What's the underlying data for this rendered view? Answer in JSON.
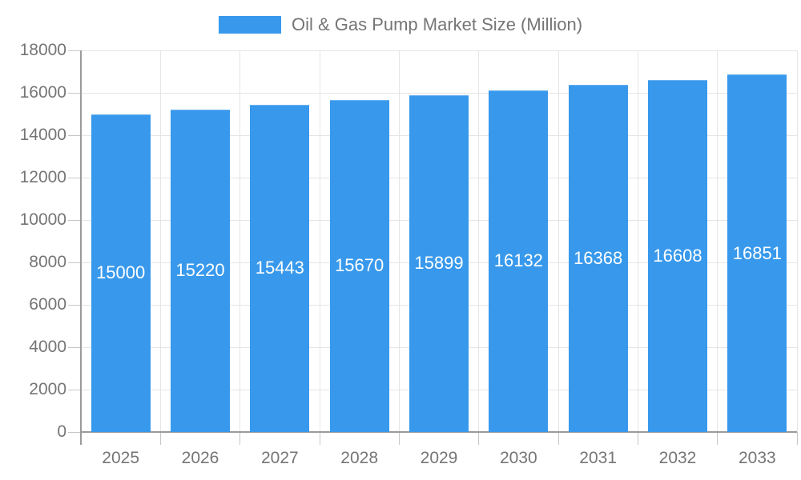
{
  "legend": {
    "label": "Oil & Gas Pump Market Size (Million)"
  },
  "colors": {
    "bar": "#3899EC",
    "axis_line": "#9b9b9b",
    "tick": "#c6c6c6",
    "grid": "#e5e5e5",
    "axis_label": "#757575",
    "value_label": "#ffffff",
    "background": "#ffffff"
  },
  "chart_data": {
    "type": "bar",
    "title": "Oil & Gas Pump Market Size (Million)",
    "categories": [
      "2025",
      "2026",
      "2027",
      "2028",
      "2029",
      "2030",
      "2031",
      "2032",
      "2033"
    ],
    "values": [
      15000,
      15220,
      15443,
      15670,
      15899,
      16132,
      16368,
      16608,
      16851
    ],
    "series_name": "Oil & Gas Pump Market Size (Million)",
    "xlabel": "",
    "ylabel": "",
    "ylim": [
      0,
      18000
    ],
    "ytick_step": 2000,
    "ytick_labels": [
      "0",
      "2000",
      "4000",
      "6000",
      "8000",
      "10000",
      "12000",
      "14000",
      "16000",
      "18000"
    ],
    "grid": true,
    "legend_position": "top-center",
    "value_label_position": "inside-middle"
  }
}
